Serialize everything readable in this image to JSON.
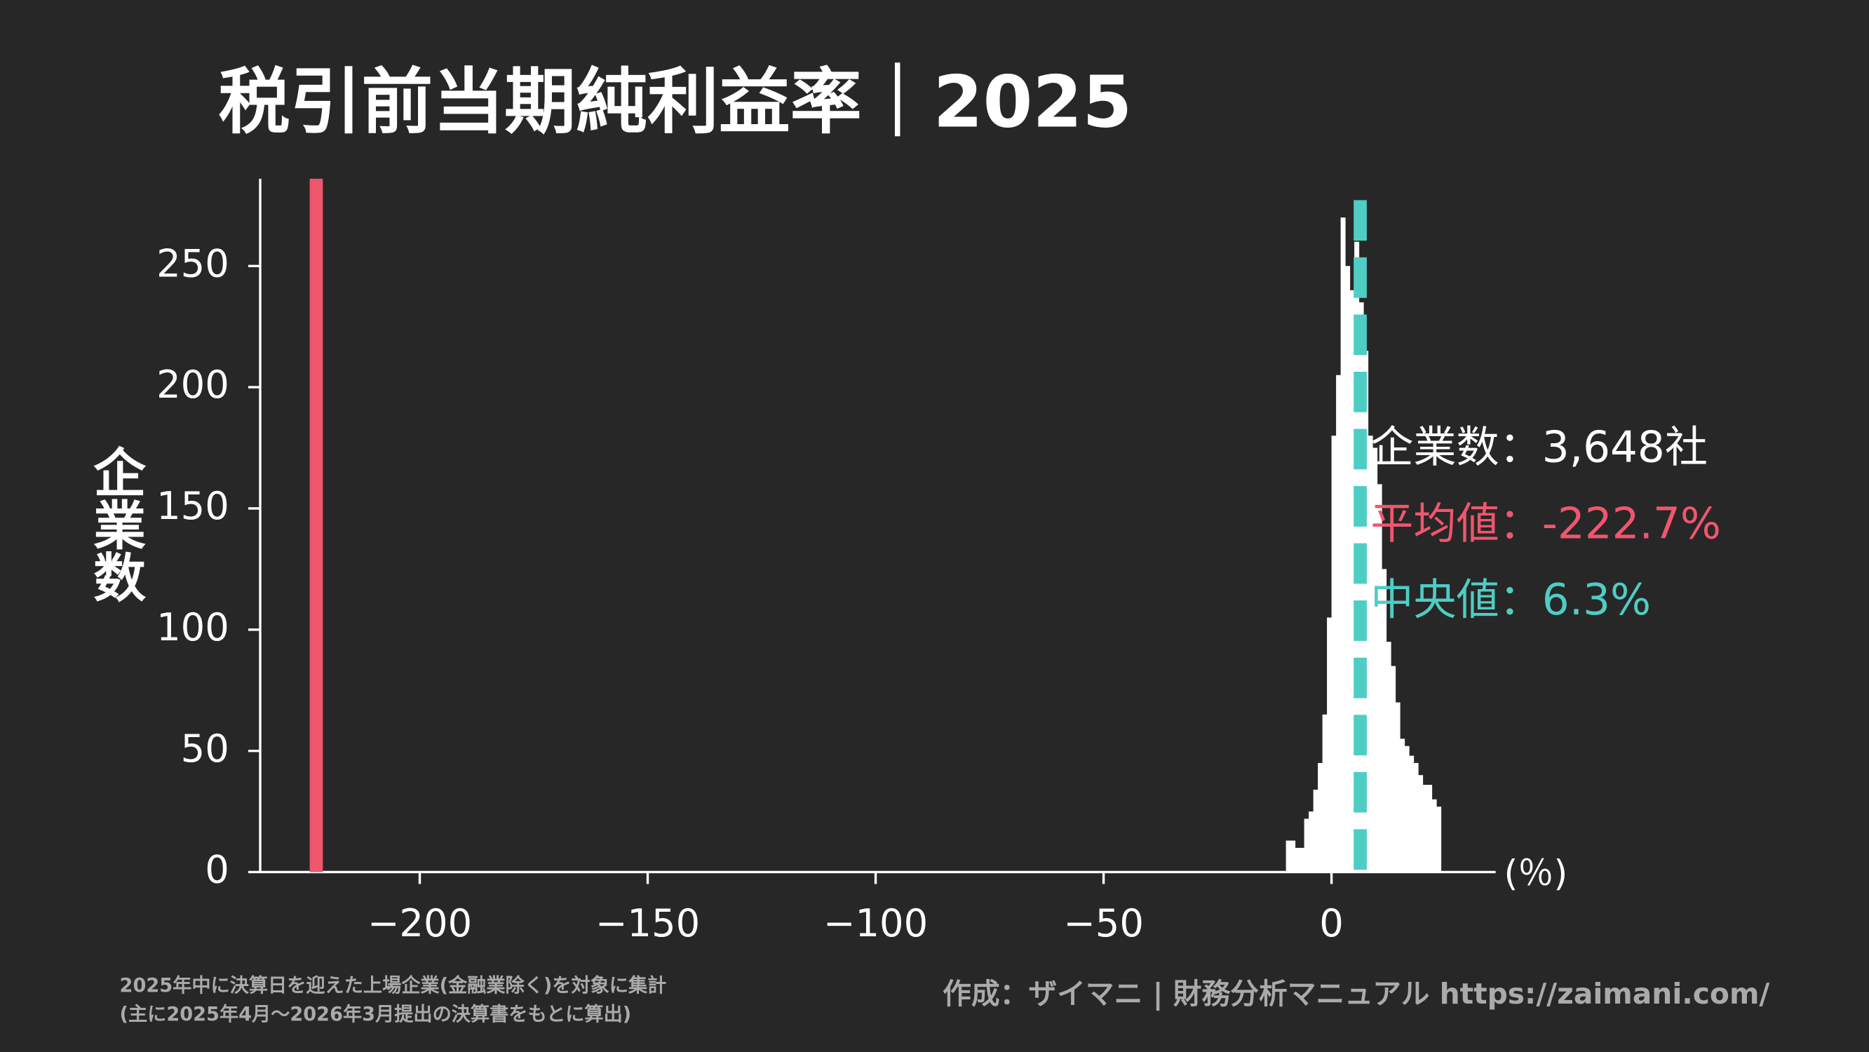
{
  "chart_data": {
    "type": "histogram",
    "title": "税引前当期純利益率｜2025",
    "y_label": "企業数",
    "x_unit": "(％)",
    "bins": [
      -10,
      -9,
      -8,
      -7,
      -6,
      -5,
      -4,
      -3,
      -2,
      -1,
      0,
      1,
      2,
      3,
      4,
      5,
      6,
      7,
      8,
      9,
      10,
      11,
      12,
      13,
      14,
      15,
      16,
      17,
      18,
      19,
      20,
      21,
      22,
      23,
      24
    ],
    "values": [
      13,
      13,
      10,
      10,
      22,
      25,
      34,
      45,
      65,
      105,
      180,
      205,
      270,
      250,
      240,
      260,
      235,
      215,
      180,
      175,
      160,
      125,
      95,
      85,
      70,
      55,
      52,
      48,
      45,
      40,
      36,
      36,
      30,
      27
    ],
    "color": "#ffffff",
    "xlim": [
      -235,
      36
    ],
    "ylim": [
      0,
      286
    ],
    "xticks": [
      {
        "value": -200,
        "label": "−200"
      },
      {
        "value": -150,
        "label": "−150"
      },
      {
        "value": -100,
        "label": "−100"
      },
      {
        "value": -50,
        "label": "−50"
      },
      0
    ],
    "yticks": [
      0,
      50,
      100,
      150,
      200,
      250
    ],
    "count_label": "企業数：3,648社",
    "mean": {
      "value": -222.7,
      "label": "平均値：-222.7%",
      "color": "#f0566e"
    },
    "median": {
      "value": 6.3,
      "label": "中央値：6.3%",
      "color": "#4ecdc4"
    },
    "footnotes": [
      "2025年中に決算日を迎えた上場企業(金融業除く)を対象に集計",
      "(主に2025年4月〜2026年3月提出の決算書をもとに算出)"
    ],
    "credit": "作成：ザイマニ | 財務分析マニュアル https://zaimani.com/"
  }
}
